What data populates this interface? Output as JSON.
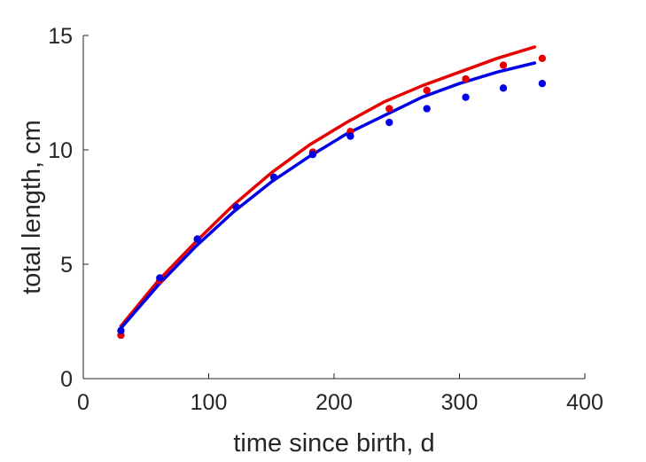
{
  "chart_data": {
    "type": "scatter",
    "title": "",
    "xlabel": "time since birth, d",
    "ylabel": "total length, cm",
    "xlim": [
      0,
      400
    ],
    "ylim": [
      0,
      15
    ],
    "xticks": [
      "0",
      "100",
      "200",
      "300",
      "400"
    ],
    "yticks": [
      "0",
      "5",
      "10",
      "15"
    ],
    "grid": false,
    "series": [
      {
        "color": "#e60000",
        "points": {
          "x": [
            30,
            61,
            91,
            122,
            152,
            183,
            213,
            244,
            274,
            305,
            335,
            366
          ],
          "y": [
            1.9,
            4.3,
            6.1,
            7.5,
            8.8,
            9.9,
            10.8,
            11.8,
            12.6,
            13.1,
            13.7,
            14.0
          ]
        },
        "fit": {
          "x": [
            30,
            60,
            90,
            120,
            150,
            180,
            210,
            240,
            270,
            300,
            330,
            360
          ],
          "y": [
            2.3,
            4.3,
            6.0,
            7.6,
            9.0,
            10.2,
            11.2,
            12.1,
            12.8,
            13.4,
            14.0,
            14.5
          ]
        }
      },
      {
        "color": "#0000e6",
        "points": {
          "x": [
            30,
            61,
            91,
            122,
            152,
            183,
            213,
            244,
            274,
            305,
            335,
            366
          ],
          "y": [
            2.1,
            4.4,
            6.1,
            7.5,
            8.8,
            9.8,
            10.6,
            11.2,
            11.8,
            12.3,
            12.7,
            12.9
          ]
        },
        "fit": {
          "x": [
            30,
            60,
            90,
            120,
            150,
            180,
            210,
            240,
            270,
            300,
            330,
            360
          ],
          "y": [
            2.2,
            4.1,
            5.8,
            7.3,
            8.6,
            9.7,
            10.7,
            11.5,
            12.3,
            12.9,
            13.4,
            13.8
          ]
        }
      }
    ]
  }
}
